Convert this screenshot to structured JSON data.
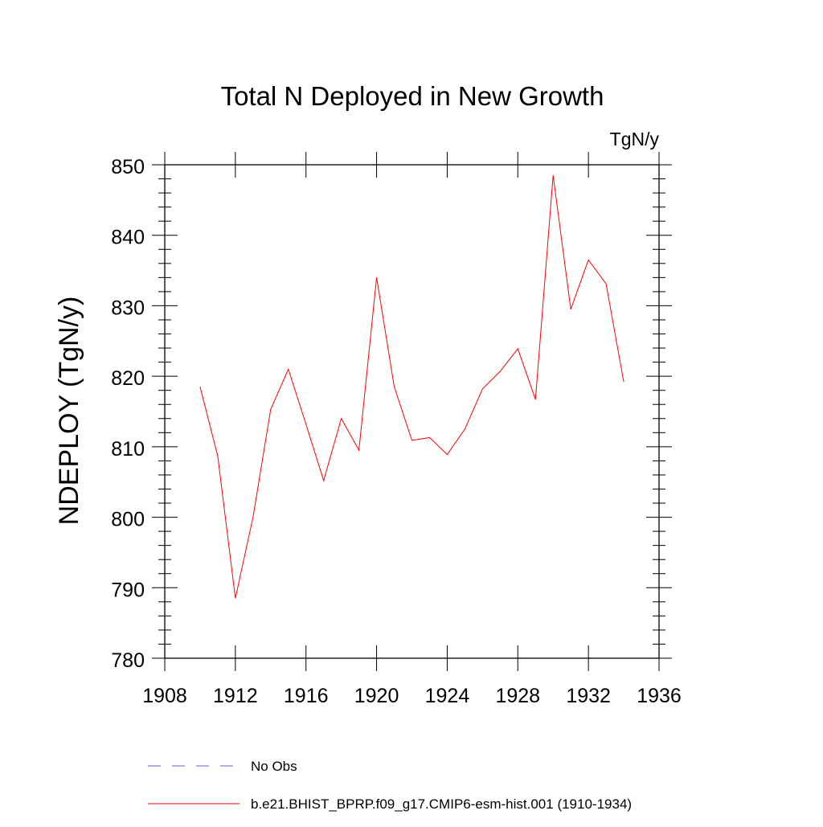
{
  "chart_data": {
    "type": "line",
    "title": "Total N Deployed in New Growth",
    "units_label": "TgN/y",
    "ylabel": "NDEPLOY  (TgN/y)",
    "xlabel": "",
    "xlim": [
      1908,
      1936
    ],
    "ylim": [
      780,
      850
    ],
    "x_ticks": [
      1908,
      1912,
      1916,
      1920,
      1924,
      1928,
      1932,
      1936
    ],
    "y_ticks": [
      780,
      790,
      800,
      810,
      820,
      830,
      840,
      850
    ],
    "x_tick_labels": [
      "1908",
      "1912",
      "1916",
      "1920",
      "1924",
      "1928",
      "1932",
      "1936"
    ],
    "y_tick_labels": [
      "780",
      "790",
      "800",
      "810",
      "820",
      "830",
      "840",
      "850"
    ],
    "grid": false,
    "legend_position": "bottom",
    "series": [
      {
        "name": "b.e21.BHIST_BPRP.f09_g17.CMIP6-esm-hist.001 (1910-1934)",
        "color": "#ff0000",
        "dash": "solid",
        "x": [
          1910,
          1911,
          1912,
          1913,
          1914,
          1915,
          1916,
          1917,
          1918,
          1919,
          1920,
          1921,
          1922,
          1923,
          1924,
          1925,
          1926,
          1927,
          1928,
          1929,
          1930,
          1931,
          1932,
          1933,
          1934
        ],
        "values": [
          818.5,
          808.7,
          788.5,
          800.0,
          815.3,
          821.0,
          813.2,
          805.2,
          814.0,
          809.5,
          834.0,
          818.5,
          810.9,
          811.3,
          808.9,
          812.5,
          818.2,
          820.7,
          823.9,
          816.7,
          848.5,
          829.5,
          836.5,
          833.1,
          819.2
        ]
      }
    ],
    "legend": [
      {
        "label": "No Obs",
        "color": "#6a5acd",
        "dash": "dashed"
      },
      {
        "label": "b.e21.BHIST_BPRP.f09_g17.CMIP6-esm-hist.001 (1910-1934)",
        "color": "#ff0000",
        "dash": "solid"
      }
    ]
  }
}
